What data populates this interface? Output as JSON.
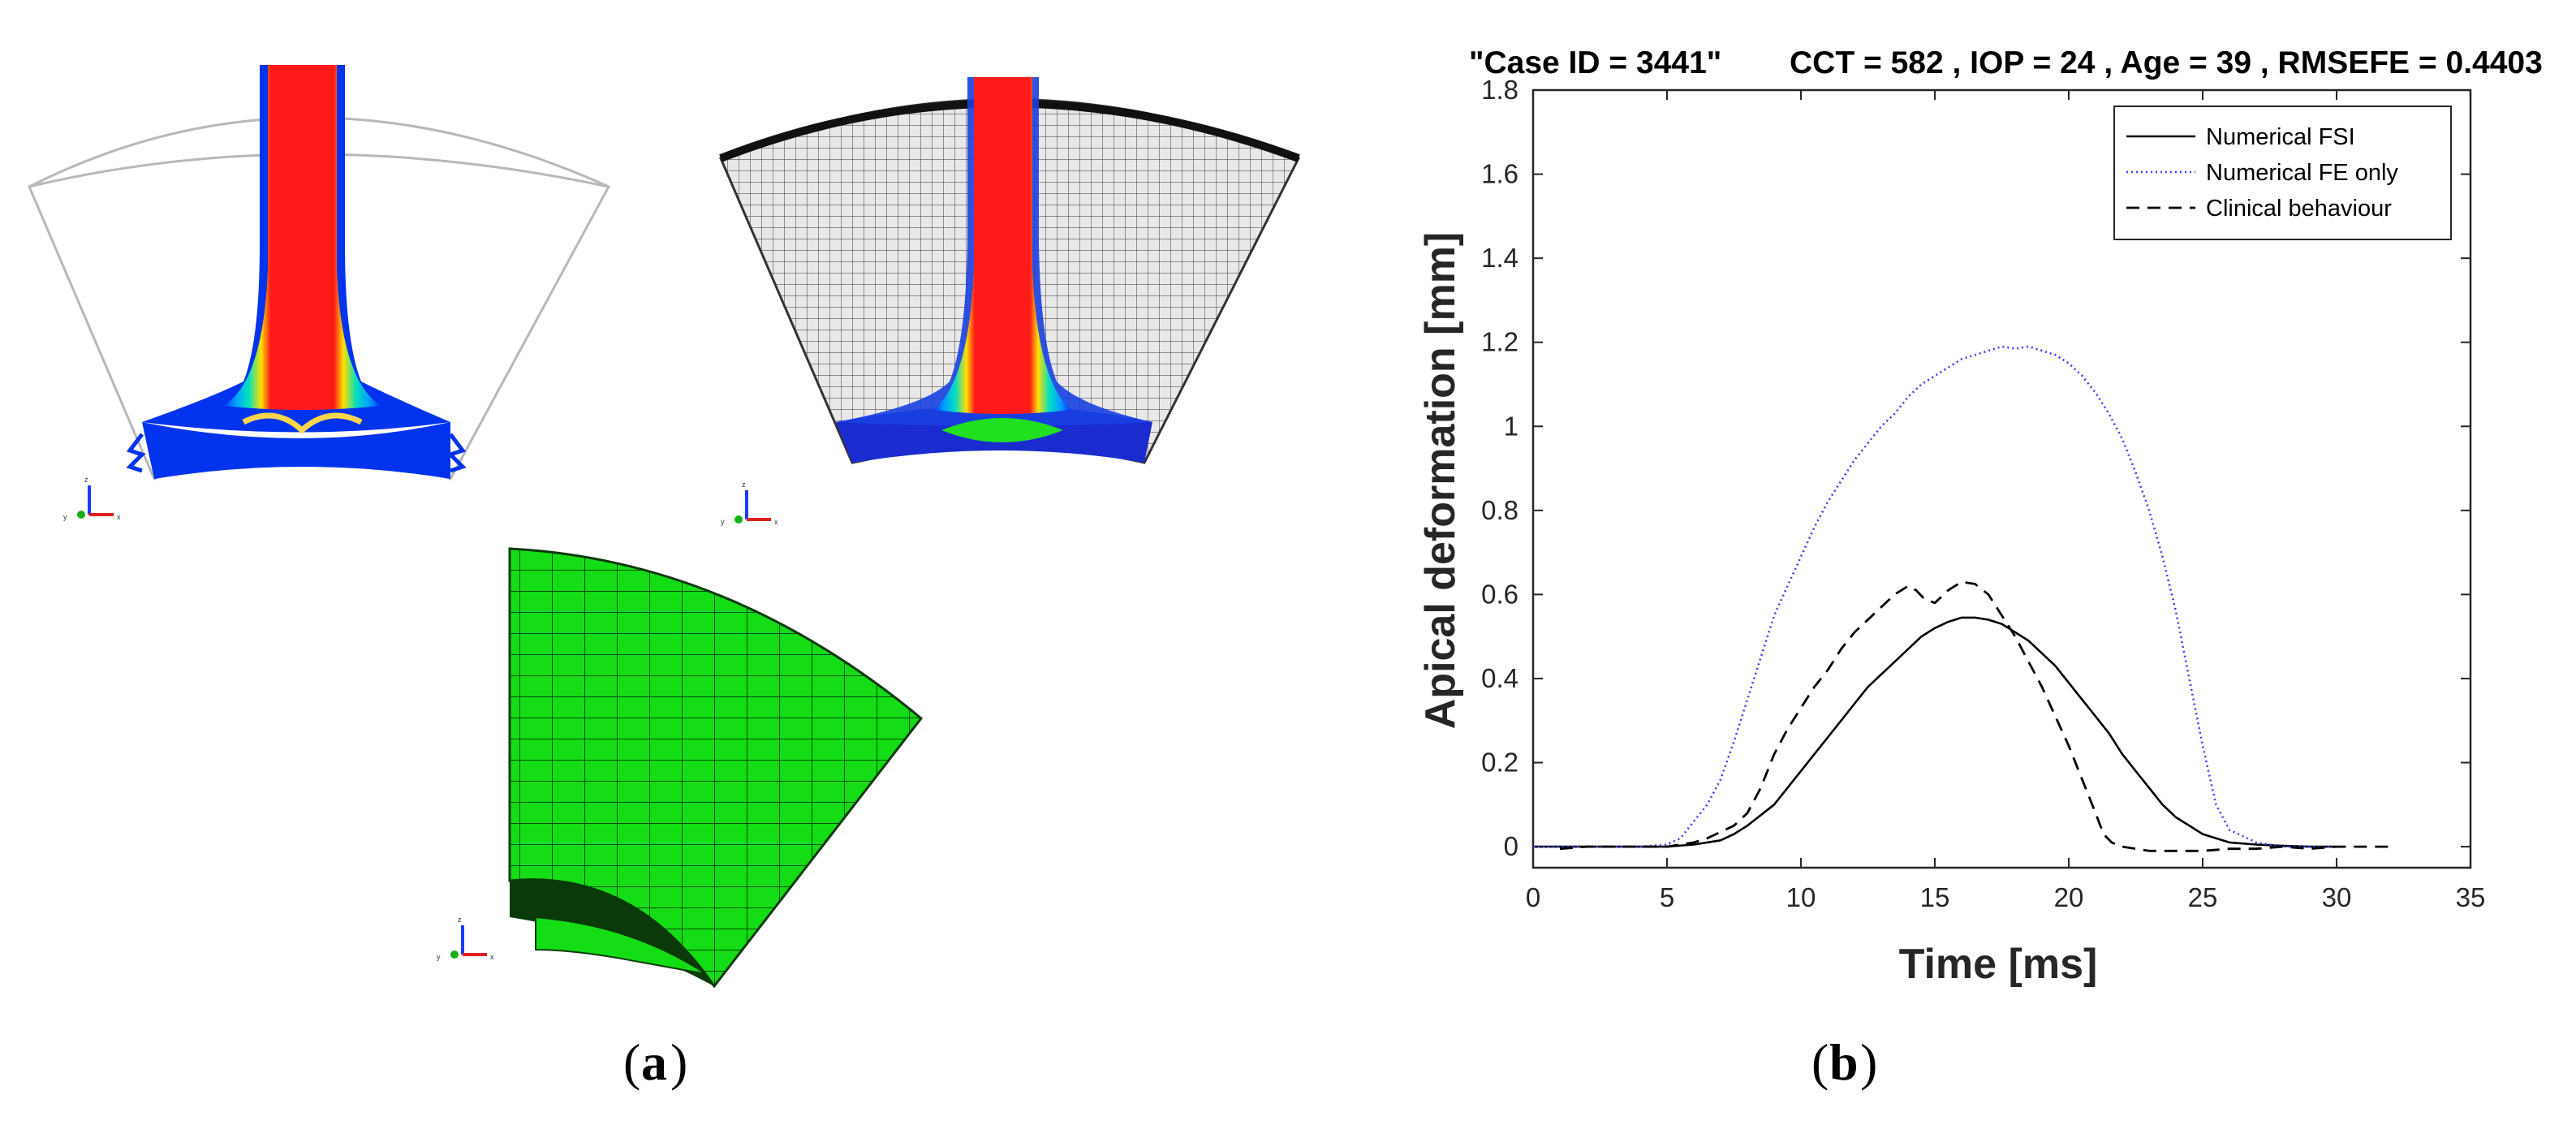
{
  "figure": {
    "panel_a_label": "a",
    "panel_b_label": "b"
  },
  "colors": {
    "fsi": "#000000",
    "fe_only": "#3c3cff",
    "clinical": "#000000",
    "mesh_green": "#15dd15",
    "contour_red": "#ff1a1a",
    "contour_blue": "#0033ee"
  },
  "panel_a": {
    "icons": [
      "cornea-contour-model-icon",
      "cornea-wireframe-model-icon",
      "cornea-mesh-model-icon",
      "axis-triad-icon"
    ],
    "triad_labels": {
      "z": "z",
      "y": "y",
      "x": "x"
    }
  },
  "chart_data": {
    "type": "line",
    "title_left": "\"Case ID = 3441\"",
    "title_right": "CCT = 582 , IOP = 24 , Age = 39 , RMSEFE = 0.4403",
    "xlabel": "Time [ms]",
    "ylabel": "Apical deformation [mm]",
    "xlim": [
      0,
      35
    ],
    "ylim": [
      -0.05,
      1.8
    ],
    "xticks": [
      0,
      5,
      10,
      15,
      20,
      25,
      30,
      35
    ],
    "yticks": [
      0,
      0.2,
      0.4,
      0.6,
      0.8,
      1,
      1.2,
      1.4,
      1.6,
      1.8
    ],
    "legend_position": "top-right",
    "series": [
      {
        "name": "Numerical FSI",
        "style": "solid",
        "x": [
          0,
          1,
          2,
          3,
          4,
          5,
          6,
          7,
          7.5,
          8,
          8.5,
          9,
          9.5,
          10,
          10.5,
          11,
          11.5,
          12,
          12.5,
          13,
          13.5,
          14,
          14.5,
          15,
          15.5,
          16,
          16.5,
          17,
          17.5,
          18,
          18.5,
          19,
          19.5,
          20,
          20.5,
          21,
          21.5,
          22,
          22.5,
          23,
          23.5,
          24,
          24.5,
          25,
          26,
          27,
          28,
          29,
          30
        ],
        "y": [
          0,
          0,
          0,
          0,
          0,
          0,
          0.005,
          0.015,
          0.03,
          0.05,
          0.075,
          0.1,
          0.14,
          0.18,
          0.22,
          0.26,
          0.3,
          0.34,
          0.38,
          0.41,
          0.44,
          0.47,
          0.5,
          0.52,
          0.535,
          0.545,
          0.545,
          0.54,
          0.53,
          0.51,
          0.49,
          0.46,
          0.43,
          0.39,
          0.35,
          0.31,
          0.27,
          0.22,
          0.18,
          0.14,
          0.1,
          0.07,
          0.05,
          0.03,
          0.01,
          0.005,
          0.002,
          0,
          0
        ]
      },
      {
        "name": "Numerical FE only",
        "style": "dotted",
        "x": [
          0,
          1,
          2,
          3,
          4,
          5,
          5.5,
          6,
          6.5,
          7,
          7.5,
          8,
          8.5,
          9,
          9.5,
          10,
          10.5,
          11,
          11.5,
          12,
          12.5,
          13,
          13.5,
          14,
          14.5,
          15,
          15.5,
          16,
          16.5,
          17,
          17.5,
          18,
          18.5,
          19,
          19.5,
          20,
          20.5,
          21,
          21.5,
          22,
          22.5,
          23,
          23.5,
          24,
          24.5,
          25,
          25.5,
          26,
          27,
          28,
          29,
          30
        ],
        "y": [
          0,
          0,
          0,
          0,
          0,
          0.005,
          0.02,
          0.06,
          0.1,
          0.16,
          0.25,
          0.35,
          0.45,
          0.55,
          0.62,
          0.69,
          0.76,
          0.82,
          0.87,
          0.92,
          0.96,
          1.0,
          1.03,
          1.07,
          1.1,
          1.12,
          1.14,
          1.16,
          1.17,
          1.18,
          1.19,
          1.185,
          1.19,
          1.18,
          1.17,
          1.15,
          1.12,
          1.08,
          1.03,
          0.97,
          0.89,
          0.8,
          0.69,
          0.56,
          0.4,
          0.24,
          0.1,
          0.04,
          0.01,
          0,
          0,
          0
        ]
      },
      {
        "name": "Clinical behaviour",
        "style": "dashed",
        "x": [
          1,
          2,
          3,
          4,
          5,
          6,
          6.5,
          7,
          7.5,
          8,
          8.5,
          9,
          9.5,
          10,
          10.5,
          11,
          11.5,
          12,
          12.5,
          13,
          13.5,
          14,
          14.3,
          14.6,
          15,
          15.5,
          16,
          16.5,
          17,
          17.5,
          18,
          18.5,
          19,
          19.5,
          20,
          20.5,
          21,
          21.3,
          21.6,
          22,
          23,
          24,
          25,
          26,
          27,
          28,
          29,
          30,
          31,
          32
        ],
        "y": [
          -0.005,
          0,
          0,
          0,
          0,
          0.01,
          0.02,
          0.035,
          0.05,
          0.08,
          0.14,
          0.22,
          0.28,
          0.33,
          0.38,
          0.42,
          0.47,
          0.51,
          0.54,
          0.57,
          0.6,
          0.62,
          0.61,
          0.59,
          0.58,
          0.61,
          0.63,
          0.625,
          0.6,
          0.55,
          0.5,
          0.44,
          0.38,
          0.31,
          0.24,
          0.16,
          0.08,
          0.03,
          0.01,
          0,
          -0.01,
          -0.01,
          -0.01,
          -0.005,
          -0.005,
          0,
          -0.005,
          0,
          0,
          0
        ]
      }
    ]
  }
}
